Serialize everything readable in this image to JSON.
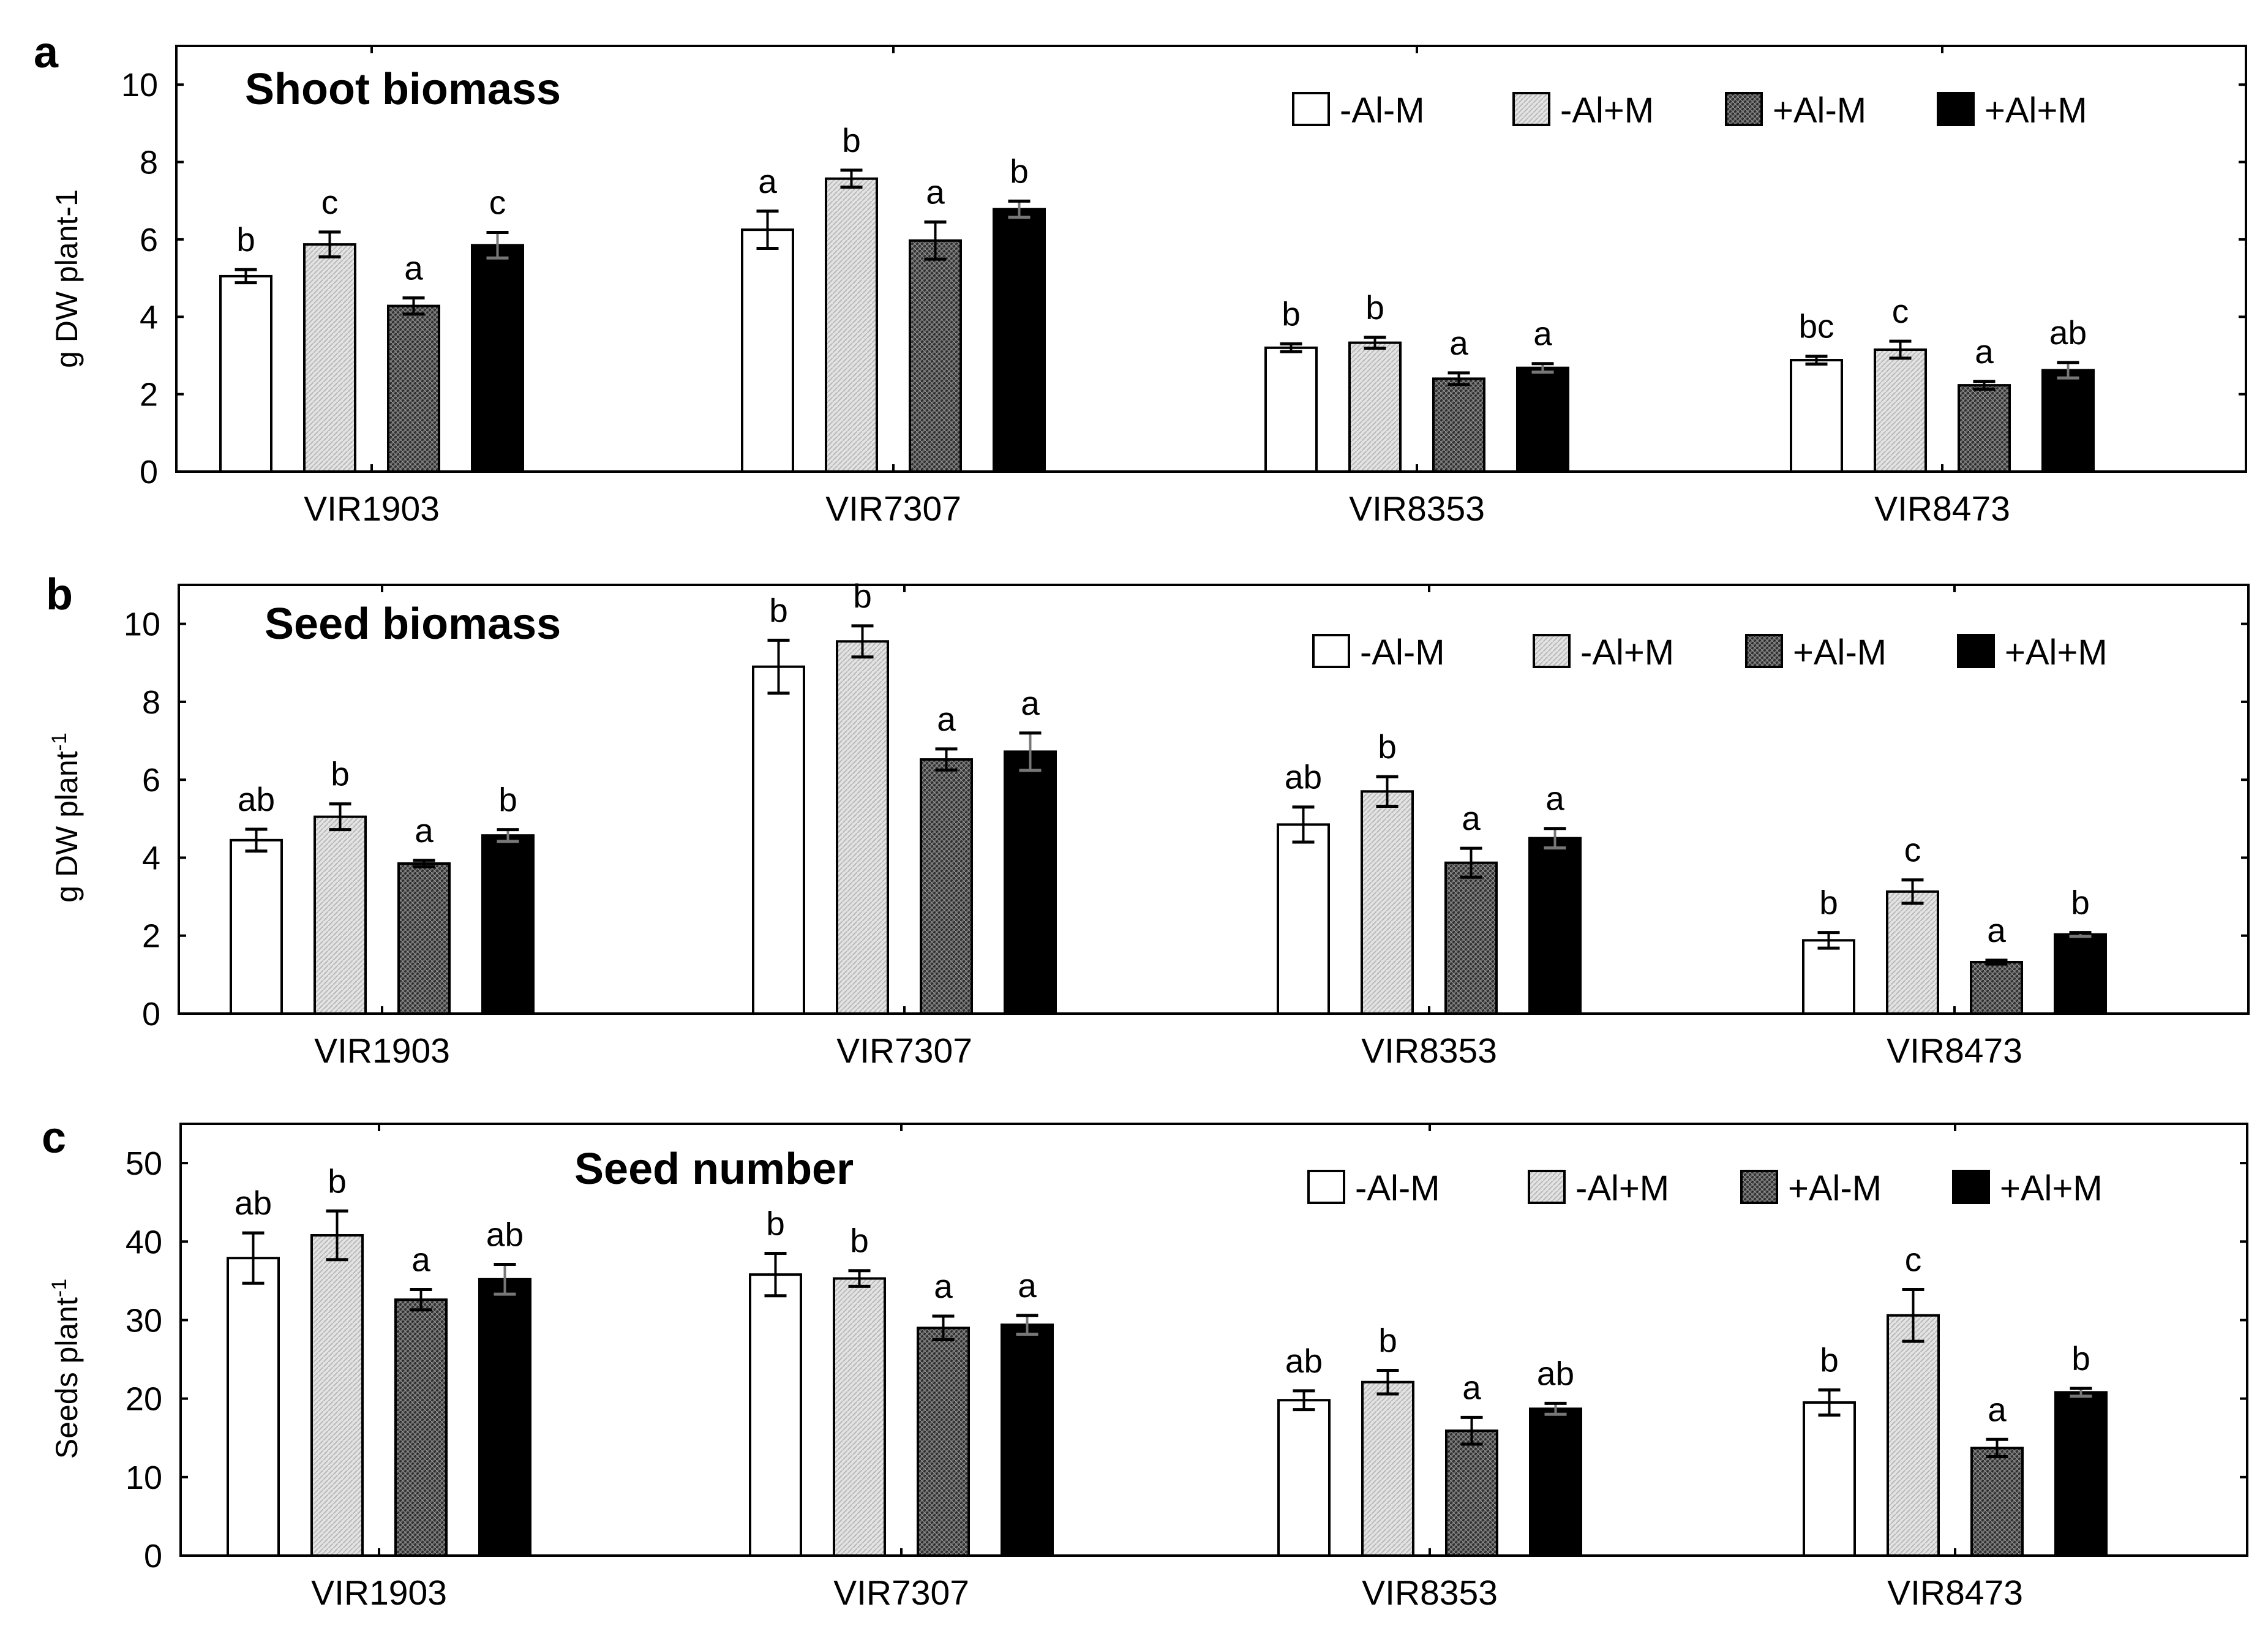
{
  "colors": {
    "-Al-M": "#ffffff",
    "-Al+M": "#dcdcdc",
    "+Al-M": "#5c5c5c",
    "+Al+M": "#000000"
  },
  "chart_data": [
    {
      "type": "bar",
      "panel_label": "a",
      "title": "Shoot biomass",
      "ylabel": "g DW plant-1",
      "ylabel_superscript": "",
      "ylim": [
        0,
        11
      ],
      "yticks": [
        "0",
        "2",
        "4",
        "6",
        "8",
        "10"
      ],
      "ytick_values": [
        0,
        2,
        4,
        6,
        8,
        10
      ],
      "categories": [
        "VIR1903",
        "VIR7307",
        "VIR8353",
        "VIR8473"
      ],
      "legend": [
        "-Al-M",
        "-Al+M",
        "+Al-M",
        "+Al+M"
      ],
      "series": [
        {
          "name": "-Al-M",
          "values": [
            5.05,
            6.25,
            3.2,
            2.88
          ],
          "errors": [
            0.17,
            0.48,
            0.1,
            0.1
          ],
          "letters": [
            "b",
            "a",
            "b",
            "bc"
          ]
        },
        {
          "name": "-Al+M",
          "values": [
            5.87,
            7.57,
            3.33,
            3.15
          ],
          "errors": [
            0.32,
            0.22,
            0.14,
            0.22
          ],
          "letters": [
            "c",
            "b",
            "b",
            "c"
          ]
        },
        {
          "name": "+Al-M",
          "values": [
            4.28,
            5.97,
            2.4,
            2.23
          ],
          "errors": [
            0.21,
            0.48,
            0.15,
            0.1
          ],
          "letters": [
            "a",
            "a",
            "a",
            "a"
          ]
        },
        {
          "name": "+Al+M",
          "values": [
            5.85,
            6.78,
            2.68,
            2.62
          ],
          "errors": [
            0.33,
            0.21,
            0.11,
            0.2
          ],
          "letters": [
            "c",
            "b",
            "a",
            "ab"
          ]
        }
      ]
    },
    {
      "type": "bar",
      "panel_label": "b",
      "title": "Seed biomass",
      "ylabel": "g DW plant",
      "ylabel_superscript": "-1",
      "ylim": [
        0,
        11
      ],
      "yticks": [
        "0",
        "2",
        "4",
        "6",
        "8",
        "10"
      ],
      "ytick_values": [
        0,
        2,
        4,
        6,
        8,
        10
      ],
      "categories": [
        "VIR1903",
        "VIR7307",
        "VIR8353",
        "VIR8473"
      ],
      "legend": [
        "-Al-M",
        "-Al+M",
        "+Al-M",
        "+Al+M"
      ],
      "series": [
        {
          "name": "-Al-M",
          "values": [
            4.45,
            8.9,
            4.85,
            1.88
          ],
          "errors": [
            0.28,
            0.68,
            0.45,
            0.2
          ],
          "letters": [
            "ab",
            "b",
            "ab",
            "b"
          ]
        },
        {
          "name": "-Al+M",
          "values": [
            5.05,
            9.55,
            5.7,
            3.13
          ],
          "errors": [
            0.33,
            0.4,
            0.38,
            0.3
          ],
          "letters": [
            "b",
            "b",
            "b",
            "c"
          ]
        },
        {
          "name": "+Al-M",
          "values": [
            3.85,
            6.52,
            3.87,
            1.32
          ],
          "errors": [
            0.08,
            0.27,
            0.37,
            0.05
          ],
          "letters": [
            "a",
            "a",
            "a",
            "a"
          ]
        },
        {
          "name": "+Al+M",
          "values": [
            4.57,
            6.72,
            4.5,
            2.03
          ],
          "errors": [
            0.15,
            0.48,
            0.25,
            0.05
          ],
          "letters": [
            "b",
            "a",
            "a",
            "b"
          ]
        }
      ]
    },
    {
      "type": "bar",
      "panel_label": "c",
      "title": "Seed number",
      "ylabel": "Seeds plant",
      "ylabel_superscript": "-1",
      "ylim": [
        0,
        55
      ],
      "yticks": [
        "0",
        "10",
        "20",
        "30",
        "40",
        "50"
      ],
      "ytick_values": [
        0,
        10,
        20,
        30,
        40,
        50
      ],
      "categories": [
        "VIR1903",
        "VIR7307",
        "VIR8353",
        "VIR8473"
      ],
      "legend": [
        "-Al-M",
        "-Al+M",
        "+Al-M",
        "+Al+M"
      ],
      "series": [
        {
          "name": "-Al-M",
          "values": [
            37.9,
            35.8,
            19.8,
            19.5
          ],
          "errors": [
            3.2,
            2.7,
            1.2,
            1.6
          ],
          "letters": [
            "ab",
            "b",
            "ab",
            "b"
          ]
        },
        {
          "name": "-Al+M",
          "values": [
            40.8,
            35.3,
            22.1,
            30.6
          ],
          "errors": [
            3.1,
            1.0,
            1.5,
            3.3
          ],
          "letters": [
            "b",
            "b",
            "b",
            "c"
          ]
        },
        {
          "name": "+Al-M",
          "values": [
            32.6,
            29.0,
            15.9,
            13.7
          ],
          "errors": [
            1.3,
            1.5,
            1.7,
            1.1
          ],
          "letters": [
            "a",
            "a",
            "a",
            "a"
          ]
        },
        {
          "name": "+Al+M",
          "values": [
            35.2,
            29.4,
            18.7,
            20.8
          ],
          "errors": [
            1.9,
            1.2,
            0.7,
            0.5
          ],
          "letters": [
            "ab",
            "a",
            "ab",
            "b"
          ]
        }
      ]
    }
  ]
}
